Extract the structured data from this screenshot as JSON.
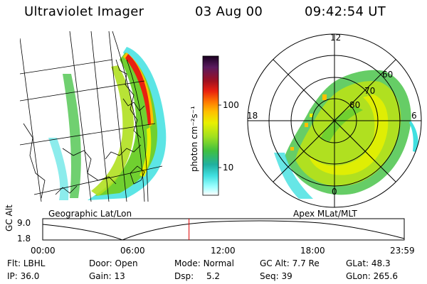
{
  "header": {
    "instrument": "Ultraviolet Imager",
    "date": "03 Aug 00",
    "time": "09:42:54 UT"
  },
  "colorbar": {
    "unit_label": "photon cm⁻²s⁻¹",
    "ticks": [
      "100",
      "10"
    ],
    "colors": [
      "#1a0020",
      "#5a1a5e",
      "#a01020",
      "#e82010",
      "#ff7a00",
      "#ffc000",
      "#e8f000",
      "#a0e020",
      "#40c040",
      "#20b0a0",
      "#40e0e0",
      "#a0ffff",
      "#ffffff"
    ]
  },
  "geo_panel": {
    "caption": "Geographic Lat/Lon"
  },
  "polar_panel": {
    "caption": "Apex MLat/MLT",
    "mlt_labels": {
      "top": "12",
      "left": "18",
      "right": "6",
      "bottom": "0"
    },
    "lat_labels": [
      "60",
      "70",
      "80"
    ]
  },
  "timeline": {
    "ylabel": "GC Alt",
    "y_ticks": [
      "9.0",
      "1.8"
    ],
    "x_ticks": [
      "00:00",
      "06:00",
      "12:00",
      "18:00",
      "23:59"
    ],
    "marker_time": "09:42:54",
    "marker_fraction": 0.4048
  },
  "params": {
    "flt_label": "Flt:",
    "flt_value": "LBHL",
    "door_label": "Door:",
    "door_value": "Open",
    "mode_label": "Mode:",
    "mode_value": "Normal",
    "gcalt_label": "GC Alt:",
    "gcalt_value": "7.7 Re",
    "glat_label": "GLat:",
    "glat_value": "48.3",
    "ip_label": "IP:",
    "ip_value": "36.0",
    "gain_label": "Gain:",
    "gain_value": "13",
    "dsp_label": "Dsp:",
    "dsp_value": "5.2",
    "seq_label": "Seq:",
    "seq_value": "39",
    "glon_label": "GLon:",
    "glon_value": "265.6"
  }
}
